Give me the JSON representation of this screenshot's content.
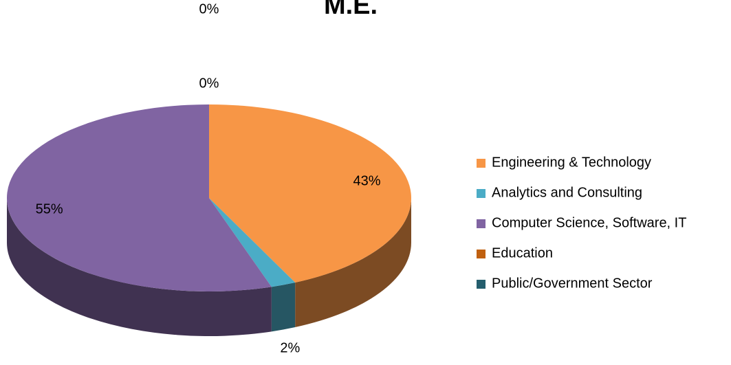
{
  "chart_data": {
    "type": "pie",
    "title": "M.E.",
    "categories": [
      "Engineering & Technology",
      "Analytics and Consulting",
      "Computer Science, Software, IT",
      "Education",
      "Public/Government Sector"
    ],
    "values": [
      43,
      2,
      55,
      0,
      0
    ],
    "value_labels": [
      "43%",
      "2%",
      "55%",
      "0%",
      "0%"
    ],
    "colors": [
      "#f79646",
      "#4bacc6",
      "#8064a2",
      "#c0600f",
      "#245e6d"
    ],
    "legend": "right"
  }
}
